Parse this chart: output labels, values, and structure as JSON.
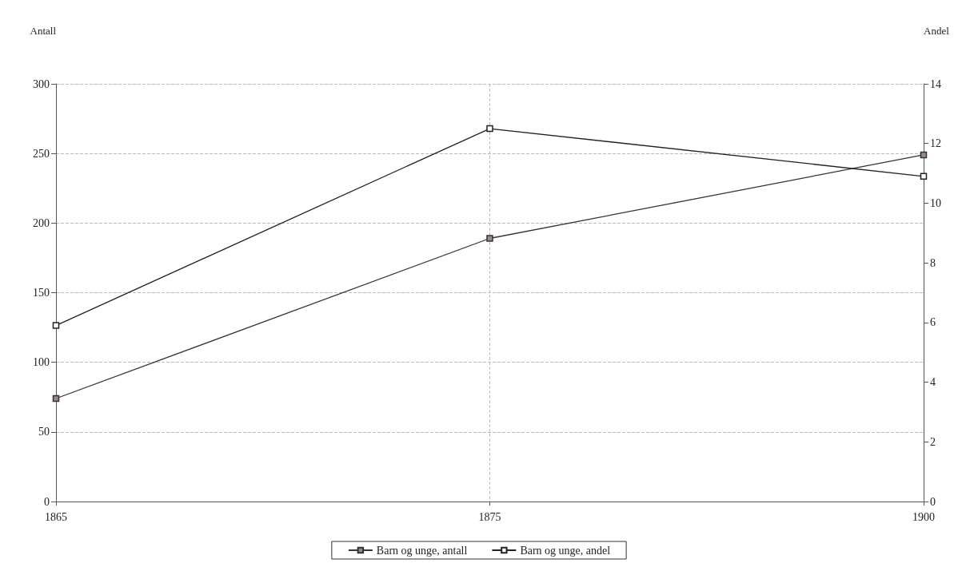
{
  "chart_data": {
    "type": "line",
    "ylabel": "Antall",
    "y2label": "Andel",
    "categories": [
      "1865",
      "1875",
      "1900"
    ],
    "series": [
      {
        "name": "Barn og unge, antall",
        "color": "#333333",
        "values": [
          74,
          189,
          249
        ]
      },
      {
        "name": "Barn og unge, andel",
        "color": "#222222",
        "values": [
          5.9,
          12.5,
          10.9
        ],
        "axis": "y2"
      }
    ],
    "ylim": [
      0,
      300
    ],
    "yticks": [
      0,
      50,
      100,
      150,
      200,
      250,
      300
    ],
    "y2lim": [
      0,
      14
    ],
    "y2ticks": [
      0,
      2,
      4,
      6,
      8,
      10,
      12,
      14
    ],
    "grid": true,
    "legend": "bottom",
    "marker": "square",
    "line_style": "solid"
  }
}
